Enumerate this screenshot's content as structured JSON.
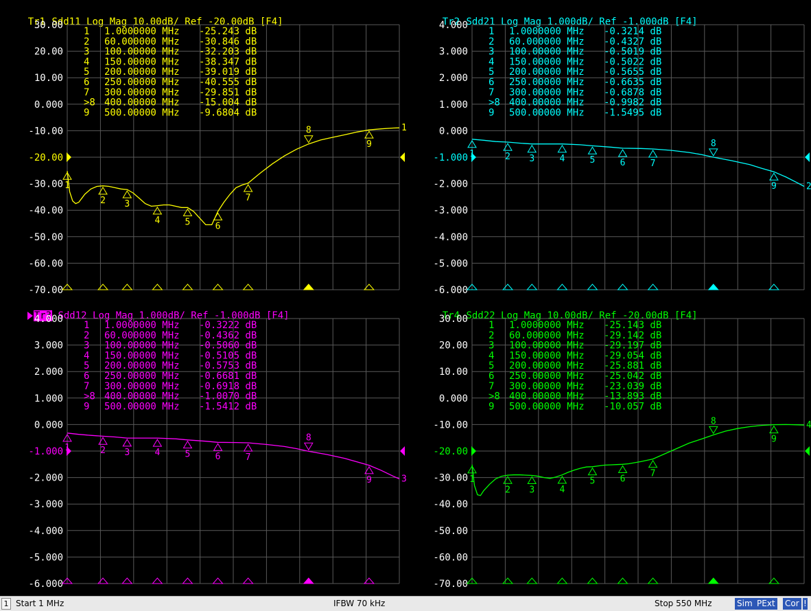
{
  "colors": {
    "tr1": "#ffff00",
    "tr2": "#00ffff",
    "tr3": "#ff00ff",
    "tr4": "#00ff00",
    "grid": "#5a5a5a",
    "axis_text": "#ffffff"
  },
  "traces": [
    {
      "id": "Tr1",
      "rest": " Sdd11 Log Mag 10.00dB/ Ref -20.00dB [F4]",
      "ref_label": "-20.00",
      "y_ticks": [
        "30.00",
        "20.00",
        "10.00",
        "0.000",
        "-10.00",
        "-20.00",
        "-30.00",
        "-40.00",
        "-50.00",
        "-60.00",
        "-70.00"
      ],
      "markers": [
        {
          "n": "1",
          "freq": "1.0000000 MHz",
          "val": "-25.243 dB"
        },
        {
          "n": "2",
          "freq": "60.000000 MHz",
          "val": "-30.846 dB"
        },
        {
          "n": "3",
          "freq": "100.00000 MHz",
          "val": "-32.203 dB"
        },
        {
          "n": "4",
          "freq": "150.00000 MHz",
          "val": "-38.347 dB"
        },
        {
          "n": "5",
          "freq": "200.00000 MHz",
          "val": "-39.019 dB"
        },
        {
          "n": "6",
          "freq": "250.00000 MHz",
          "val": "-40.555 dB"
        },
        {
          "n": "7",
          "freq": "300.00000 MHz",
          "val": "-29.851 dB"
        },
        {
          "n": ">8",
          "freq": "400.00000 MHz",
          "val": "-15.004 dB"
        },
        {
          "n": "9",
          "freq": "500.00000 MHz",
          "val": "-9.6804 dB"
        }
      ]
    },
    {
      "id": "Tr2",
      "rest": " Sdd21 Log Mag 1.000dB/ Ref -1.000dB [F4]",
      "ref_label": "-1.000",
      "y_ticks": [
        "4.000",
        "3.000",
        "2.000",
        "1.000",
        "0.000",
        "-1.000",
        "-2.000",
        "-3.000",
        "-4.000",
        "-5.000",
        "-6.000"
      ],
      "markers": [
        {
          "n": "1",
          "freq": "1.0000000 MHz",
          "val": "-0.3214 dB"
        },
        {
          "n": "2",
          "freq": "60.000000 MHz",
          "val": "-0.4327 dB"
        },
        {
          "n": "3",
          "freq": "100.00000 MHz",
          "val": "-0.5019 dB"
        },
        {
          "n": "4",
          "freq": "150.00000 MHz",
          "val": "-0.5022 dB"
        },
        {
          "n": "5",
          "freq": "200.00000 MHz",
          "val": "-0.5655 dB"
        },
        {
          "n": "6",
          "freq": "250.00000 MHz",
          "val": "-0.6635 dB"
        },
        {
          "n": "7",
          "freq": "300.00000 MHz",
          "val": "-0.6878 dB"
        },
        {
          "n": ">8",
          "freq": "400.00000 MHz",
          "val": "-0.9982 dB"
        },
        {
          "n": "9",
          "freq": "500.00000 MHz",
          "val": "-1.5495 dB"
        }
      ]
    },
    {
      "id": "Tr3",
      "rest": " Sdd12 Log Mag 1.000dB/ Ref -1.000dB [F4]",
      "ref_label": "-1.000",
      "y_ticks": [
        "4.000",
        "3.000",
        "2.000",
        "1.000",
        "0.000",
        "-1.000",
        "-2.000",
        "-3.000",
        "-4.000",
        "-5.000",
        "-6.000"
      ],
      "markers": [
        {
          "n": "1",
          "freq": "1.0000000 MHz",
          "val": "-0.3222 dB"
        },
        {
          "n": "2",
          "freq": "60.000000 MHz",
          "val": "-0.4362 dB"
        },
        {
          "n": "3",
          "freq": "100.00000 MHz",
          "val": "-0.5060 dB"
        },
        {
          "n": "4",
          "freq": "150.00000 MHz",
          "val": "-0.5105 dB"
        },
        {
          "n": "5",
          "freq": "200.00000 MHz",
          "val": "-0.5753 dB"
        },
        {
          "n": "6",
          "freq": "250.00000 MHz",
          "val": "-0.6681 dB"
        },
        {
          "n": "7",
          "freq": "300.00000 MHz",
          "val": "-0.6918 dB"
        },
        {
          "n": ">8",
          "freq": "400.00000 MHz",
          "val": "-1.0070 dB"
        },
        {
          "n": "9",
          "freq": "500.00000 MHz",
          "val": "-1.5412 dB"
        }
      ]
    },
    {
      "id": "Tr4",
      "rest": " Sdd22 Log Mag 10.00dB/ Ref -20.00dB [F4]",
      "ref_label": "-20.00",
      "y_ticks": [
        "30.00",
        "20.00",
        "10.00",
        "0.000",
        "-10.00",
        "-20.00",
        "-30.00",
        "-40.00",
        "-50.00",
        "-60.00",
        "-70.00"
      ],
      "markers": [
        {
          "n": "1",
          "freq": "1.0000000 MHz",
          "val": "-25.143 dB"
        },
        {
          "n": "2",
          "freq": "60.000000 MHz",
          "val": "-29.142 dB"
        },
        {
          "n": "3",
          "freq": "100.00000 MHz",
          "val": "-29.197 dB"
        },
        {
          "n": "4",
          "freq": "150.00000 MHz",
          "val": "-29.054 dB"
        },
        {
          "n": "5",
          "freq": "200.00000 MHz",
          "val": "-25.881 dB"
        },
        {
          "n": "6",
          "freq": "250.00000 MHz",
          "val": "-25.042 dB"
        },
        {
          "n": "7",
          "freq": "300.00000 MHz",
          "val": "-23.039 dB"
        },
        {
          "n": ">8",
          "freq": "400.00000 MHz",
          "val": "-13.893 dB"
        },
        {
          "n": "9",
          "freq": "500.00000 MHz",
          "val": "-10.057 dB"
        }
      ]
    }
  ],
  "chart_data": [
    {
      "type": "line",
      "title": "Tr1 Sdd11 Log Mag 10.00dB/ Ref -20.00dB [F4]",
      "xlim": [
        1,
        550
      ],
      "ylim": [
        -70,
        30
      ],
      "x_unit": "MHz",
      "y_unit": "dB",
      "grid": true,
      "series": [
        {
          "name": "Sdd11",
          "x": [
            1,
            5,
            10,
            15,
            20,
            25,
            30,
            40,
            50,
            60,
            70,
            80,
            90,
            100,
            110,
            120,
            130,
            140,
            150,
            160,
            170,
            180,
            190,
            200,
            210,
            220,
            230,
            240,
            250,
            260,
            270,
            280,
            290,
            300,
            320,
            340,
            360,
            380,
            400,
            420,
            440,
            460,
            480,
            500,
            520,
            540,
            550
          ],
          "y": [
            -25.2,
            -33,
            -36.5,
            -37.5,
            -37,
            -35.5,
            -34,
            -32,
            -31,
            -30.8,
            -31,
            -31.5,
            -32,
            -32.2,
            -33.5,
            -35.5,
            -37.5,
            -38.5,
            -38.3,
            -38,
            -38,
            -38.5,
            -39,
            -39,
            -40.5,
            -43,
            -45.5,
            -45.5,
            -40.5,
            -37,
            -34,
            -31.5,
            -30.5,
            -29.8,
            -26,
            -22.5,
            -19.5,
            -17,
            -15,
            -13.5,
            -12.5,
            -11.5,
            -10.5,
            -9.7,
            -9.3,
            -9,
            -8.9
          ]
        }
      ],
      "markers": [
        {
          "label": "1",
          "x": 1,
          "y": -25.243
        },
        {
          "label": "2",
          "x": 60,
          "y": -30.846
        },
        {
          "label": "3",
          "x": 100,
          "y": -32.203
        },
        {
          "label": "4",
          "x": 150,
          "y": -38.347
        },
        {
          "label": "5",
          "x": 200,
          "y": -39.019
        },
        {
          "label": "6",
          "x": 250,
          "y": -40.555
        },
        {
          "label": "7",
          "x": 300,
          "y": -29.851
        },
        {
          "label": "8",
          "x": 400,
          "y": -15.004
        },
        {
          "label": "9",
          "x": 500,
          "y": -9.6804
        }
      ]
    },
    {
      "type": "line",
      "title": "Tr2 Sdd21 Log Mag 1.000dB/ Ref -1.000dB [F4]",
      "xlim": [
        1,
        550
      ],
      "ylim": [
        -6,
        4
      ],
      "x_unit": "MHz",
      "y_unit": "dB",
      "grid": true,
      "series": [
        {
          "name": "Sdd21",
          "x": [
            1,
            20,
            40,
            60,
            80,
            100,
            130,
            150,
            180,
            200,
            230,
            250,
            280,
            300,
            330,
            360,
            380,
            400,
            430,
            460,
            480,
            500,
            520,
            540,
            550
          ],
          "y": [
            -0.32,
            -0.36,
            -0.41,
            -0.43,
            -0.47,
            -0.5,
            -0.5,
            -0.5,
            -0.53,
            -0.57,
            -0.62,
            -0.66,
            -0.67,
            -0.69,
            -0.74,
            -0.82,
            -0.9,
            -1.0,
            -1.13,
            -1.28,
            -1.42,
            -1.55,
            -1.75,
            -1.98,
            -2.1
          ]
        }
      ],
      "markers": [
        {
          "label": "1",
          "x": 1,
          "y": -0.3214
        },
        {
          "label": "2",
          "x": 60,
          "y": -0.4327
        },
        {
          "label": "3",
          "x": 100,
          "y": -0.5019
        },
        {
          "label": "4",
          "x": 150,
          "y": -0.5022
        },
        {
          "label": "5",
          "x": 200,
          "y": -0.5655
        },
        {
          "label": "6",
          "x": 250,
          "y": -0.6635
        },
        {
          "label": "7",
          "x": 300,
          "y": -0.6878
        },
        {
          "label": "8",
          "x": 400,
          "y": -0.9982
        },
        {
          "label": "9",
          "x": 500,
          "y": -1.5495
        }
      ]
    },
    {
      "type": "line",
      "title": "Tr3 Sdd12 Log Mag 1.000dB/ Ref -1.000dB [F4]",
      "xlim": [
        1,
        550
      ],
      "ylim": [
        -6,
        4
      ],
      "x_unit": "MHz",
      "y_unit": "dB",
      "grid": true,
      "series": [
        {
          "name": "Sdd12",
          "x": [
            1,
            20,
            40,
            60,
            80,
            100,
            130,
            150,
            180,
            200,
            230,
            250,
            280,
            300,
            330,
            360,
            380,
            400,
            430,
            460,
            480,
            500,
            520,
            540,
            550
          ],
          "y": [
            -0.32,
            -0.37,
            -0.41,
            -0.44,
            -0.47,
            -0.51,
            -0.51,
            -0.51,
            -0.54,
            -0.58,
            -0.63,
            -0.67,
            -0.68,
            -0.69,
            -0.75,
            -0.83,
            -0.91,
            -1.01,
            -1.13,
            -1.28,
            -1.41,
            -1.54,
            -1.73,
            -1.95,
            -2.05
          ]
        }
      ],
      "markers": [
        {
          "label": "1",
          "x": 1,
          "y": -0.3222
        },
        {
          "label": "2",
          "x": 60,
          "y": -0.4362
        },
        {
          "label": "3",
          "x": 100,
          "y": -0.506
        },
        {
          "label": "4",
          "x": 150,
          "y": -0.5105
        },
        {
          "label": "5",
          "x": 200,
          "y": -0.5753
        },
        {
          "label": "6",
          "x": 250,
          "y": -0.6681
        },
        {
          "label": "7",
          "x": 300,
          "y": -0.6918
        },
        {
          "label": "8",
          "x": 400,
          "y": -1.007
        },
        {
          "label": "9",
          "x": 500,
          "y": -1.5412
        }
      ]
    },
    {
      "type": "line",
      "title": "Tr4 Sdd22 Log Mag 10.00dB/ Ref -20.00dB [F4]",
      "xlim": [
        1,
        550
      ],
      "ylim": [
        -70,
        30
      ],
      "x_unit": "MHz",
      "y_unit": "dB",
      "grid": true,
      "series": [
        {
          "name": "Sdd22",
          "x": [
            1,
            5,
            10,
            15,
            20,
            30,
            40,
            50,
            60,
            70,
            80,
            90,
            100,
            110,
            120,
            130,
            140,
            150,
            160,
            170,
            180,
            190,
            200,
            210,
            220,
            230,
            240,
            250,
            260,
            280,
            300,
            320,
            340,
            360,
            380,
            400,
            420,
            440,
            460,
            480,
            500,
            520,
            540,
            550
          ],
          "y": [
            -25.1,
            -33,
            -36.5,
            -36.8,
            -35,
            -32.5,
            -30.5,
            -29.5,
            -29.1,
            -29,
            -29,
            -29.1,
            -29.2,
            -29.5,
            -30,
            -30.3,
            -29.8,
            -29,
            -28,
            -27.2,
            -26.5,
            -26,
            -25.9,
            -25.6,
            -25.3,
            -25.2,
            -25.1,
            -25,
            -24.8,
            -24,
            -23,
            -21,
            -19,
            -17,
            -15.5,
            -13.9,
            -12.5,
            -11.5,
            -10.8,
            -10.3,
            -10.06,
            -10,
            -10.1,
            -10.2
          ]
        }
      ],
      "markers": [
        {
          "label": "1",
          "x": 1,
          "y": -25.143
        },
        {
          "label": "2",
          "x": 60,
          "y": -29.142
        },
        {
          "label": "3",
          "x": 100,
          "y": -29.197
        },
        {
          "label": "4",
          "x": 150,
          "y": -29.054
        },
        {
          "label": "5",
          "x": 200,
          "y": -25.881
        },
        {
          "label": "6",
          "x": 250,
          "y": -25.042
        },
        {
          "label": "7",
          "x": 300,
          "y": -23.039
        },
        {
          "label": "8",
          "x": 400,
          "y": -13.893
        },
        {
          "label": "9",
          "x": 500,
          "y": -10.057
        }
      ]
    }
  ],
  "status": {
    "channel": "1",
    "start": "Start 1 MHz",
    "ifbw": "IFBW 70 kHz",
    "stop": "Stop 550 MHz",
    "badges": [
      "Sim",
      "PExt",
      "Cor",
      "!"
    ]
  }
}
